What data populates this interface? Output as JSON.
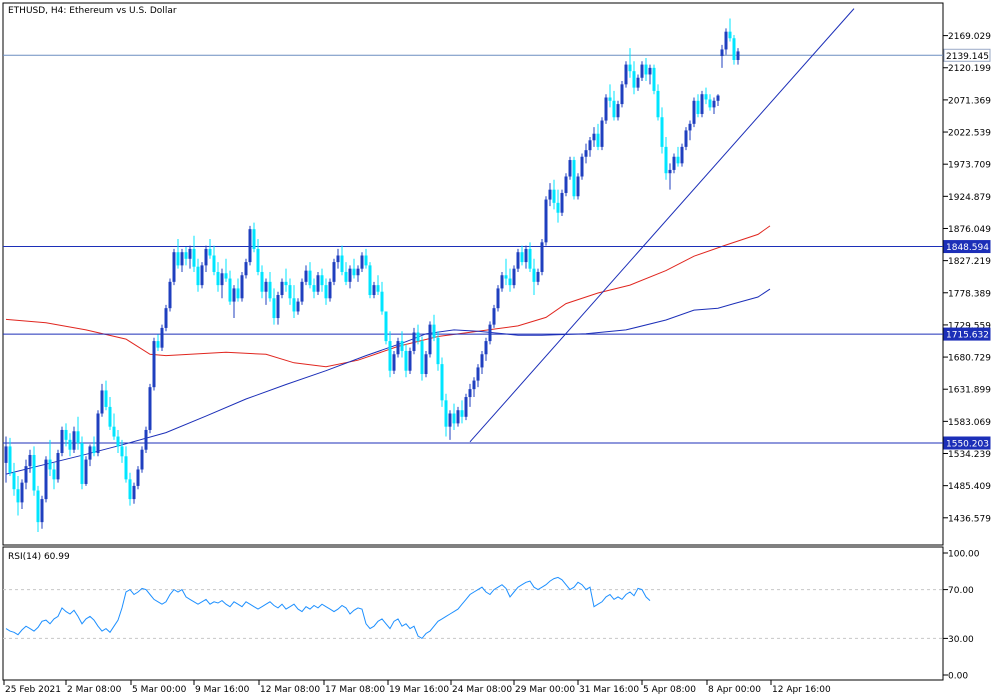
{
  "chart_data": {
    "type": "candlestick",
    "title": "ETHUSD, H4:  Ethereum vs U.S. Dollar",
    "colors": {
      "bull": "#1f3fbf",
      "bear": "#00e5ff",
      "ma_fast": "#e0261f",
      "ma_slow": "#1c2fb8",
      "hline": "#1c2fb8",
      "grid": "#c8c8c8"
    },
    "price_axis": {
      "ticks": [
        "2169.029",
        "2120.199",
        "2071.369",
        "2022.539",
        "1973.709",
        "1924.879",
        "1876.049",
        "1827.219",
        "1778.389",
        "1729.559",
        "1680.729",
        "1631.899",
        "1583.069",
        "1534.239",
        "1485.409",
        "1436.579"
      ],
      "min": 1400,
      "max": 2210
    },
    "time_axis": [
      "25 Feb 2021",
      "2 Mar 08:00",
      "5 Mar 00:00",
      "9 Mar 16:00",
      "12 Mar 08:00",
      "17 Mar 08:00",
      "19 Mar 16:00",
      "24 Mar 08:00",
      "29 Mar 00:00",
      "31 Mar 16:00",
      "5 Apr 08:00",
      "8 Apr 00:00",
      "12 Apr 16:00"
    ],
    "price_labels": [
      {
        "text": "2139.145",
        "value": 2139.145,
        "style": "current"
      },
      {
        "text": "1848.594",
        "value": 1848.594,
        "style": "level"
      },
      {
        "text": "1715.632",
        "value": 1715.632,
        "style": "level"
      },
      {
        "text": "1550.203",
        "value": 1550.203,
        "style": "level"
      }
    ],
    "horizontal_levels": [
      2139.145,
      1848.594,
      1715.632,
      1550.203
    ],
    "trendline": {
      "from": {
        "bar": 116,
        "price": 1552
      },
      "to": {
        "bar": 212,
        "price": 2210
      }
    },
    "ma_fast": [
      [
        0,
        1738
      ],
      [
        10,
        1733
      ],
      [
        20,
        1722
      ],
      [
        30,
        1708
      ],
      [
        36,
        1685
      ],
      [
        40,
        1683
      ],
      [
        55,
        1688
      ],
      [
        65,
        1685
      ],
      [
        72,
        1672
      ],
      [
        80,
        1666
      ],
      [
        88,
        1676
      ],
      [
        98,
        1697
      ],
      [
        108,
        1712
      ],
      [
        118,
        1720
      ],
      [
        128,
        1728
      ],
      [
        135,
        1741
      ],
      [
        140,
        1762
      ],
      [
        148,
        1778
      ],
      [
        156,
        1790
      ],
      [
        165,
        1812
      ],
      [
        172,
        1834
      ],
      [
        180,
        1851
      ],
      [
        188,
        1867
      ],
      [
        191,
        1880
      ]
    ],
    "ma_slow": [
      [
        0,
        1503
      ],
      [
        10,
        1518
      ],
      [
        20,
        1533
      ],
      [
        30,
        1549
      ],
      [
        40,
        1566
      ],
      [
        50,
        1591
      ],
      [
        60,
        1617
      ],
      [
        70,
        1639
      ],
      [
        80,
        1660
      ],
      [
        90,
        1683
      ],
      [
        100,
        1704
      ],
      [
        105,
        1716
      ],
      [
        112,
        1722
      ],
      [
        118,
        1720
      ],
      [
        128,
        1714
      ],
      [
        134,
        1714
      ],
      [
        145,
        1716
      ],
      [
        155,
        1722
      ],
      [
        165,
        1737
      ],
      [
        172,
        1752
      ],
      [
        178,
        1755
      ],
      [
        182,
        1762
      ],
      [
        188,
        1772
      ],
      [
        191,
        1784
      ]
    ],
    "candles": [
      [
        1520,
        1560,
        1490,
        1545
      ],
      [
        1545,
        1558,
        1500,
        1505
      ],
      [
        1505,
        1520,
        1470,
        1480
      ],
      [
        1480,
        1500,
        1440,
        1460
      ],
      [
        1460,
        1495,
        1450,
        1490
      ],
      [
        1490,
        1525,
        1480,
        1515
      ],
      [
        1515,
        1540,
        1505,
        1532
      ],
      [
        1532,
        1545,
        1470,
        1478
      ],
      [
        1478,
        1485,
        1415,
        1430
      ],
      [
        1430,
        1470,
        1420,
        1465
      ],
      [
        1465,
        1530,
        1460,
        1525
      ],
      [
        1525,
        1555,
        1500,
        1510
      ],
      [
        1510,
        1520,
        1480,
        1495
      ],
      [
        1495,
        1540,
        1490,
        1535
      ],
      [
        1535,
        1575,
        1530,
        1570
      ],
      [
        1570,
        1580,
        1545,
        1555
      ],
      [
        1555,
        1565,
        1530,
        1540
      ],
      [
        1540,
        1575,
        1535,
        1568
      ],
      [
        1568,
        1590,
        1540,
        1550
      ],
      [
        1550,
        1560,
        1480,
        1488
      ],
      [
        1488,
        1530,
        1485,
        1525
      ],
      [
        1525,
        1548,
        1515,
        1545
      ],
      [
        1545,
        1560,
        1530,
        1535
      ],
      [
        1535,
        1600,
        1530,
        1595
      ],
      [
        1595,
        1640,
        1590,
        1630
      ],
      [
        1630,
        1645,
        1600,
        1605
      ],
      [
        1605,
        1620,
        1570,
        1575
      ],
      [
        1575,
        1595,
        1555,
        1560
      ],
      [
        1560,
        1570,
        1535,
        1545
      ],
      [
        1545,
        1555,
        1520,
        1530
      ],
      [
        1530,
        1545,
        1490,
        1495
      ],
      [
        1495,
        1505,
        1455,
        1465
      ],
      [
        1465,
        1490,
        1458,
        1485
      ],
      [
        1485,
        1515,
        1480,
        1510
      ],
      [
        1510,
        1545,
        1505,
        1540
      ],
      [
        1540,
        1575,
        1535,
        1570
      ],
      [
        1570,
        1640,
        1565,
        1635
      ],
      [
        1635,
        1710,
        1630,
        1705
      ],
      [
        1705,
        1715,
        1690,
        1695
      ],
      [
        1695,
        1730,
        1690,
        1725
      ],
      [
        1725,
        1760,
        1720,
        1755
      ],
      [
        1755,
        1800,
        1750,
        1795
      ],
      [
        1795,
        1845,
        1790,
        1840
      ],
      [
        1840,
        1860,
        1815,
        1820
      ],
      [
        1820,
        1845,
        1810,
        1840
      ],
      [
        1840,
        1848,
        1820,
        1830
      ],
      [
        1830,
        1850,
        1815,
        1845
      ],
      [
        1845,
        1865,
        1810,
        1818
      ],
      [
        1818,
        1830,
        1780,
        1790
      ],
      [
        1790,
        1825,
        1785,
        1820
      ],
      [
        1820,
        1850,
        1810,
        1845
      ],
      [
        1845,
        1860,
        1830,
        1835
      ],
      [
        1835,
        1850,
        1805,
        1810
      ],
      [
        1810,
        1825,
        1780,
        1790
      ],
      [
        1790,
        1815,
        1770,
        1808
      ],
      [
        1808,
        1830,
        1795,
        1800
      ],
      [
        1800,
        1812,
        1760,
        1765
      ],
      [
        1765,
        1790,
        1740,
        1785
      ],
      [
        1785,
        1800,
        1765,
        1770
      ],
      [
        1770,
        1810,
        1765,
        1805
      ],
      [
        1805,
        1830,
        1800,
        1825
      ],
      [
        1825,
        1880,
        1820,
        1875
      ],
      [
        1875,
        1885,
        1840,
        1845
      ],
      [
        1845,
        1860,
        1805,
        1810
      ],
      [
        1810,
        1820,
        1770,
        1780
      ],
      [
        1780,
        1800,
        1760,
        1795
      ],
      [
        1795,
        1810,
        1765,
        1770
      ],
      [
        1770,
        1785,
        1730,
        1740
      ],
      [
        1740,
        1780,
        1730,
        1775
      ],
      [
        1775,
        1800,
        1770,
        1795
      ],
      [
        1795,
        1815,
        1780,
        1790
      ],
      [
        1790,
        1800,
        1760,
        1770
      ],
      [
        1770,
        1790,
        1740,
        1750
      ],
      [
        1750,
        1770,
        1745,
        1765
      ],
      [
        1765,
        1800,
        1760,
        1795
      ],
      [
        1795,
        1820,
        1790,
        1812
      ],
      [
        1812,
        1825,
        1785,
        1790
      ],
      [
        1790,
        1800,
        1770,
        1780
      ],
      [
        1780,
        1810,
        1775,
        1805
      ],
      [
        1805,
        1815,
        1780,
        1790
      ],
      [
        1790,
        1800,
        1760,
        1770
      ],
      [
        1770,
        1800,
        1765,
        1795
      ],
      [
        1795,
        1830,
        1790,
        1825
      ],
      [
        1825,
        1845,
        1815,
        1835
      ],
      [
        1835,
        1850,
        1805,
        1810
      ],
      [
        1810,
        1825,
        1790,
        1795
      ],
      [
        1795,
        1820,
        1785,
        1815
      ],
      [
        1815,
        1830,
        1800,
        1805
      ],
      [
        1805,
        1820,
        1795,
        1815
      ],
      [
        1815,
        1840,
        1810,
        1835
      ],
      [
        1835,
        1845,
        1815,
        1820
      ],
      [
        1820,
        1825,
        1770,
        1775
      ],
      [
        1775,
        1795,
        1770,
        1790
      ],
      [
        1790,
        1805,
        1775,
        1780
      ],
      [
        1780,
        1795,
        1745,
        1750
      ],
      [
        1750,
        1745,
        1700,
        1705
      ],
      [
        1705,
        1720,
        1650,
        1660
      ],
      [
        1660,
        1690,
        1655,
        1685
      ],
      [
        1685,
        1710,
        1680,
        1705
      ],
      [
        1705,
        1720,
        1680,
        1690
      ],
      [
        1690,
        1700,
        1650,
        1660
      ],
      [
        1660,
        1695,
        1655,
        1690
      ],
      [
        1690,
        1725,
        1685,
        1718
      ],
      [
        1718,
        1730,
        1700,
        1705
      ],
      [
        1705,
        1712,
        1645,
        1655
      ],
      [
        1655,
        1690,
        1650,
        1685
      ],
      [
        1685,
        1735,
        1680,
        1730
      ],
      [
        1730,
        1745,
        1705,
        1710
      ],
      [
        1710,
        1720,
        1660,
        1670
      ],
      [
        1670,
        1680,
        1605,
        1615
      ],
      [
        1615,
        1625,
        1560,
        1575
      ],
      [
        1575,
        1600,
        1555,
        1595
      ],
      [
        1595,
        1610,
        1570,
        1580
      ],
      [
        1580,
        1605,
        1575,
        1600
      ],
      [
        1600,
        1615,
        1580,
        1590
      ],
      [
        1590,
        1625,
        1585,
        1620
      ],
      [
        1620,
        1640,
        1605,
        1632
      ],
      [
        1632,
        1650,
        1620,
        1645
      ],
      [
        1645,
        1670,
        1635,
        1665
      ],
      [
        1665,
        1690,
        1655,
        1685
      ],
      [
        1685,
        1710,
        1675,
        1705
      ],
      [
        1705,
        1735,
        1700,
        1730
      ],
      [
        1730,
        1760,
        1725,
        1755
      ],
      [
        1755,
        1790,
        1750,
        1785
      ],
      [
        1785,
        1810,
        1780,
        1805
      ],
      [
        1805,
        1830,
        1790,
        1800
      ],
      [
        1800,
        1815,
        1780,
        1790
      ],
      [
        1790,
        1820,
        1785,
        1815
      ],
      [
        1815,
        1845,
        1810,
        1840
      ],
      [
        1840,
        1850,
        1820,
        1825
      ],
      [
        1825,
        1850,
        1815,
        1845
      ],
      [
        1845,
        1855,
        1810,
        1815
      ],
      [
        1815,
        1830,
        1775,
        1795
      ],
      [
        1795,
        1815,
        1790,
        1810
      ],
      [
        1810,
        1860,
        1805,
        1855
      ],
      [
        1855,
        1925,
        1850,
        1920
      ],
      [
        1920,
        1945,
        1910,
        1935
      ],
      [
        1935,
        1950,
        1905,
        1915
      ],
      [
        1915,
        1935,
        1885,
        1900
      ],
      [
        1900,
        1935,
        1895,
        1930
      ],
      [
        1930,
        1960,
        1925,
        1955
      ],
      [
        1955,
        1985,
        1950,
        1980
      ],
      [
        1980,
        1985,
        1920,
        1925
      ],
      [
        1925,
        1960,
        1920,
        1955
      ],
      [
        1955,
        1990,
        1950,
        1985
      ],
      [
        1985,
        2005,
        1975,
        1995
      ],
      [
        1995,
        2015,
        1985,
        2010
      ],
      [
        2010,
        2030,
        2000,
        2020
      ],
      [
        2020,
        2035,
        1995,
        2000
      ],
      [
        2000,
        2045,
        1995,
        2040
      ],
      [
        2040,
        2080,
        2035,
        2075
      ],
      [
        2075,
        2095,
        2060,
        2070
      ],
      [
        2070,
        2085,
        2040,
        2045
      ],
      [
        2045,
        2070,
        2040,
        2065
      ],
      [
        2065,
        2100,
        2060,
        2095
      ],
      [
        2095,
        2130,
        2090,
        2125
      ],
      [
        2125,
        2150,
        2105,
        2115
      ],
      [
        2115,
        2130,
        2080,
        2090
      ],
      [
        2090,
        2110,
        2085,
        2105
      ],
      [
        2105,
        2130,
        2100,
        2125
      ],
      [
        2125,
        2135,
        2100,
        2110
      ],
      [
        2110,
        2125,
        2095,
        2120
      ],
      [
        2120,
        2125,
        2080,
        2085
      ],
      [
        2085,
        2095,
        2040,
        2045
      ],
      [
        2045,
        2060,
        1990,
        2000
      ],
      [
        2000,
        2015,
        1950,
        1960
      ],
      [
        1960,
        1975,
        1935,
        1965
      ],
      [
        1965,
        1990,
        1960,
        1985
      ],
      [
        1985,
        2000,
        1970,
        1975
      ],
      [
        1975,
        2005,
        1970,
        2000
      ],
      [
        2000,
        2030,
        1995,
        2025
      ],
      [
        2025,
        2040,
        2010,
        2035
      ],
      [
        2035,
        2075,
        2030,
        2070
      ],
      [
        2070,
        2080,
        2045,
        2050
      ],
      [
        2050,
        2085,
        2045,
        2080
      ],
      [
        2080,
        2090,
        2065,
        2072
      ],
      [
        2072,
        2080,
        2055,
        2060
      ],
      [
        2060,
        2075,
        2050,
        2070
      ],
      [
        2070,
        2080,
        2062,
        2078
      ],
      [
        2138,
        2155,
        2120,
        2148
      ],
      [
        2148,
        2180,
        2140,
        2175
      ],
      [
        2175,
        2195,
        2160,
        2165
      ],
      [
        2165,
        2170,
        2125,
        2132
      ],
      [
        2132,
        2150,
        2125,
        2145
      ]
    ],
    "rsi": {
      "label": "RSI(14) 60.99",
      "ticks": [
        "100.00",
        "70.00",
        "30.00",
        "0.00"
      ],
      "levels": [
        70,
        30
      ],
      "values": [
        38,
        36,
        35,
        33,
        37,
        40,
        38,
        36,
        39,
        44,
        45,
        42,
        46,
        48,
        55,
        52,
        50,
        53,
        48,
        42,
        46,
        48,
        45,
        40,
        36,
        38,
        35,
        40,
        45,
        55,
        68,
        70,
        66,
        68,
        71,
        70,
        66,
        62,
        60,
        58,
        60,
        66,
        70,
        68,
        70,
        64,
        62,
        60,
        58,
        60,
        62,
        58,
        60,
        59,
        61,
        58,
        56,
        60,
        58,
        56,
        60,
        58,
        56,
        54,
        56,
        58,
        60,
        57,
        55,
        58,
        54,
        56,
        58,
        54,
        52,
        56,
        54,
        57,
        55,
        58,
        56,
        54,
        52,
        54,
        57,
        55,
        50,
        53,
        55,
        54,
        42,
        38,
        40,
        44,
        46,
        42,
        38,
        44,
        46,
        40,
        42,
        38,
        40,
        32,
        30,
        34,
        36,
        40,
        44,
        46,
        48,
        50,
        52,
        54,
        58,
        62,
        66,
        68,
        70,
        72,
        68,
        66,
        70,
        72,
        74,
        71,
        64,
        68,
        72,
        74,
        76,
        77,
        72,
        70,
        72,
        74,
        77,
        79,
        80,
        78,
        74,
        70,
        72,
        76,
        74,
        70,
        72,
        56,
        58,
        60,
        64,
        66,
        62,
        64,
        62,
        66,
        68,
        65,
        71,
        70,
        64,
        61
      ]
    }
  }
}
